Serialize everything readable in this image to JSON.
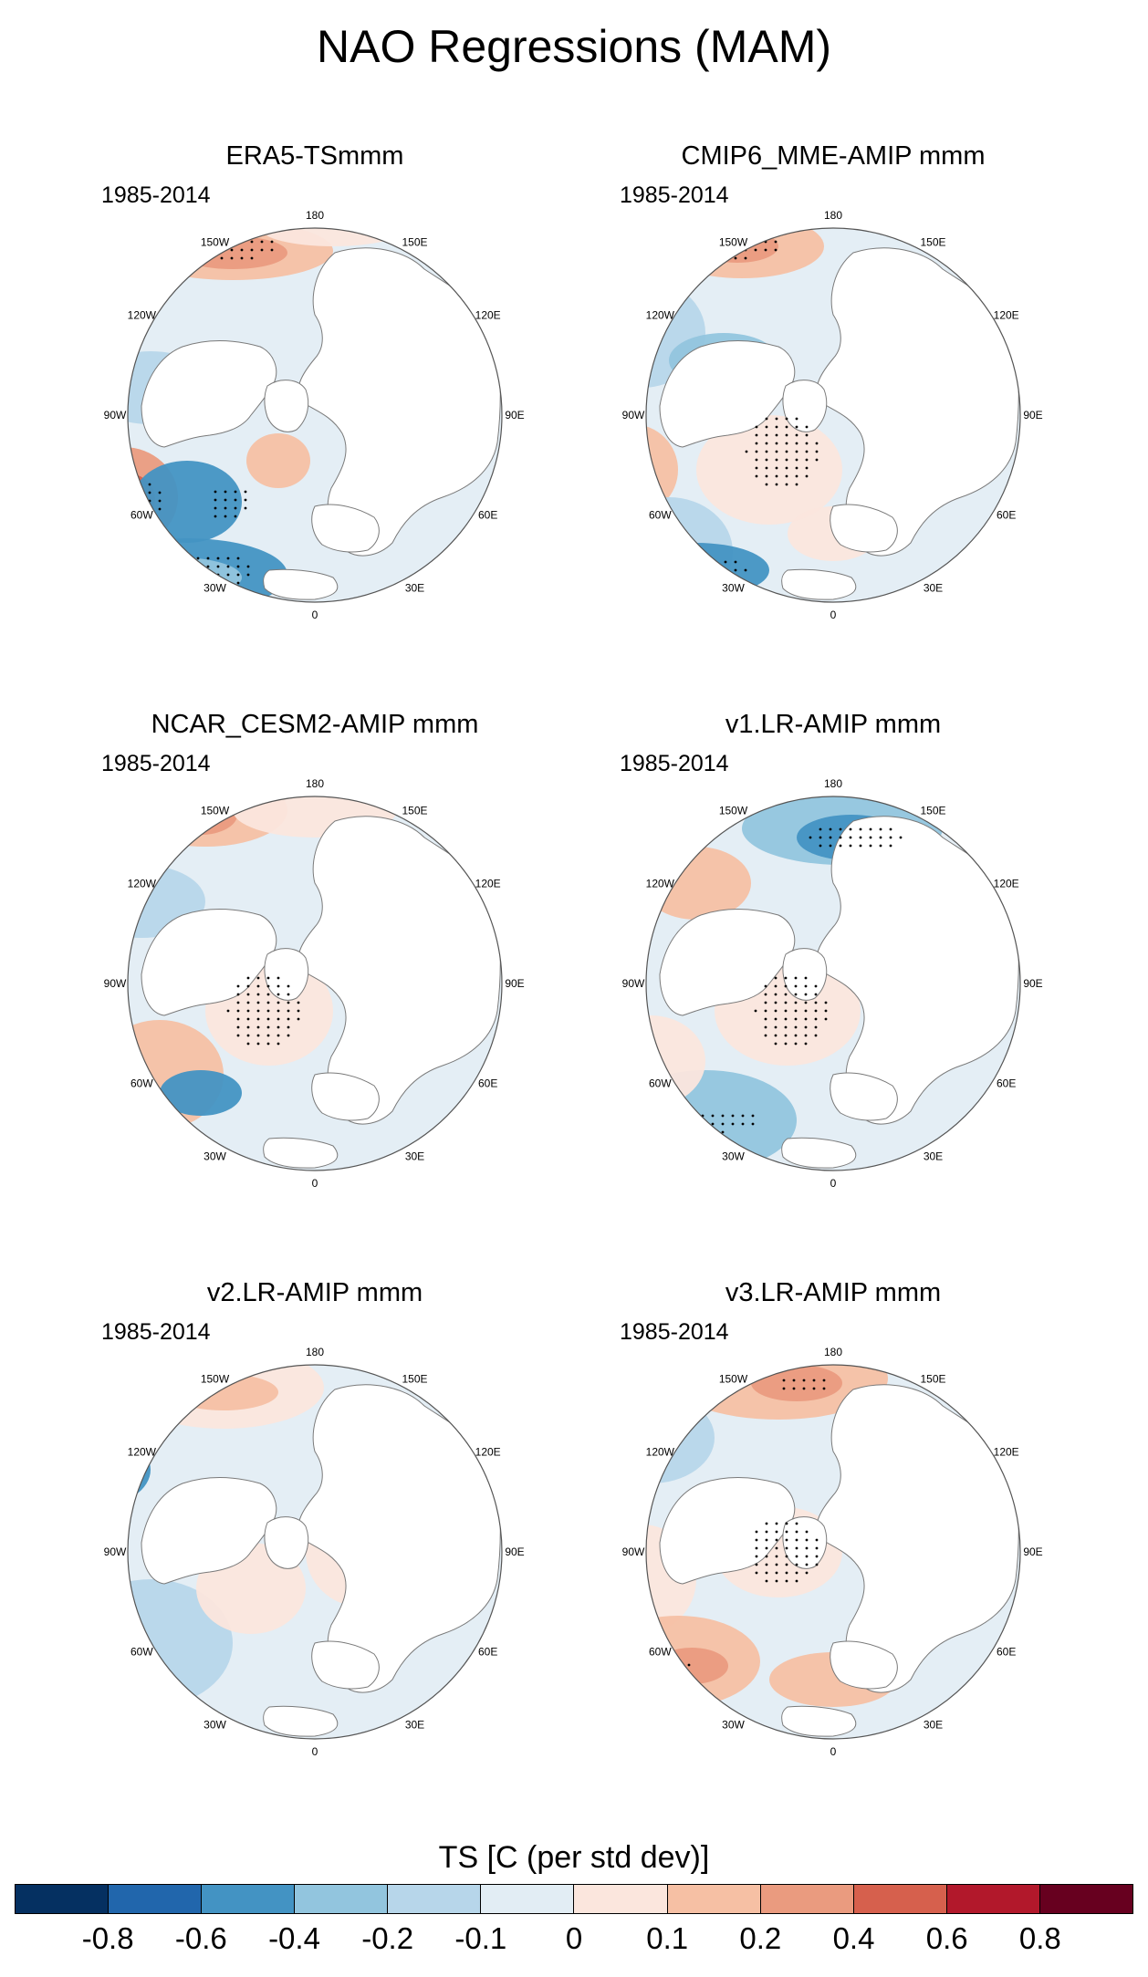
{
  "title": "NAO Regressions (MAM)",
  "panels": [
    {
      "title": "ERA5-TSmmm",
      "period": "1985-2014"
    },
    {
      "title": "CMIP6_MME-AMIP  mmm",
      "period": "1985-2014"
    },
    {
      "title": "NCAR_CESM2-AMIP  mmm",
      "period": "1985-2014"
    },
    {
      "title": "v1.LR-AMIP  mmm",
      "period": "1985-2014"
    },
    {
      "title": "v2.LR-AMIP  mmm",
      "period": "1985-2014"
    },
    {
      "title": "v3.LR-AMIP  mmm",
      "period": "1985-2014"
    }
  ],
  "longitude_labels": [
    "180",
    "150E",
    "120E",
    "90E",
    "60E",
    "30E",
    "0",
    "30W",
    "60W",
    "90W",
    "120W",
    "150W"
  ],
  "colorbar": {
    "title": "TS [C (per std dev)]",
    "tick_labels": [
      "-0.8",
      "-0.6",
      "-0.4",
      "-0.2",
      "-0.1",
      "0",
      "0.1",
      "0.2",
      "0.4",
      "0.6",
      "0.8"
    ],
    "colors": [
      "#053061",
      "#2166ac",
      "#4393c3",
      "#92c5de",
      "#b7d6ea",
      "#e2edf4",
      "#fbe6dd",
      "#f6c0a4",
      "#ea9b7f",
      "#d6604d",
      "#b2182b",
      "#67001f"
    ]
  },
  "field_colors": {
    "ocean_neutral": "#e4eef5",
    "weak_cool": "#b7d6ea",
    "cool": "#92c5de",
    "strong_cool": "#4393c3",
    "weak_warm": "#fbe6dd",
    "warm": "#f6c0a4",
    "strong_warm": "#ea9b7f",
    "very_warm": "#d6604d"
  }
}
